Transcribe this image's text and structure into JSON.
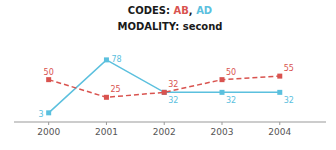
{
  "chart_data": {
    "type": "line",
    "title": "CODES: AB, AD",
    "subtitle": "MODALITY: second",
    "x": [
      2000,
      2001,
      2002,
      2003,
      2004
    ],
    "series": [
      {
        "name": "AD",
        "color": "#5bc0de",
        "values": [
          3,
          78,
          32,
          32,
          32
        ],
        "marker": "square",
        "line_style": "solid"
      },
      {
        "name": "AB",
        "color": "#d9534f",
        "values": [
          50,
          25,
          32,
          50,
          55
        ],
        "marker": "square",
        "line_style": "dashed"
      }
    ],
    "xlim": [
      1999.4,
      2004.8
    ],
    "xticks": [
      2000,
      2001,
      2002,
      2003,
      2004
    ],
    "ylim": [
      -10,
      92
    ],
    "tick_labels": "x",
    "grid": false,
    "data_labels": true
  }
}
